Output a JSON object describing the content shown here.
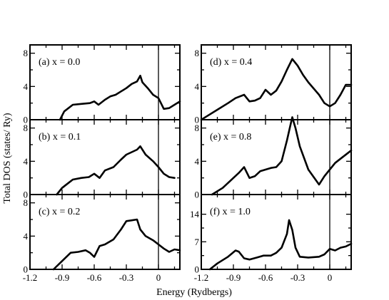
{
  "chart_data": {
    "type": "line",
    "xlabel": "Energy (Rydbergs)",
    "ylabel": "Total DOS (states/ Ry)",
    "xlim": [
      -1.2,
      0.2
    ],
    "x_ticks": [
      -1.2,
      -0.9,
      -0.6,
      -0.3,
      0
    ],
    "x_tick_labels": [
      "-1.2",
      "-0.9",
      "-0.6",
      "-0.3",
      "0"
    ],
    "fermi_level": 0,
    "panels": [
      {
        "label": "(a)  x = 0.0",
        "ylim": [
          0,
          9
        ],
        "y_ticks": [
          0,
          4,
          8
        ],
        "y_tick_labels": [
          "0",
          "4",
          "8"
        ],
        "x": [
          -0.92,
          -0.88,
          -0.8,
          -0.72,
          -0.64,
          -0.6,
          -0.56,
          -0.5,
          -0.45,
          -0.4,
          -0.35,
          -0.3,
          -0.25,
          -0.2,
          -0.17,
          -0.15,
          -0.1,
          -0.05,
          0,
          0.05,
          0.1,
          0.15,
          0.2
        ],
        "y": [
          0,
          1.0,
          1.8,
          1.9,
          2.0,
          2.2,
          1.8,
          2.4,
          2.8,
          3.0,
          3.4,
          3.8,
          4.3,
          4.6,
          5.3,
          4.5,
          3.8,
          3.0,
          2.6,
          1.3,
          1.4,
          1.8,
          2.2
        ]
      },
      {
        "label": "(b)  x = 0.1",
        "ylim": [
          0,
          9
        ],
        "y_ticks": [
          0,
          4,
          8
        ],
        "y_tick_labels": [
          "0",
          "4",
          "8"
        ],
        "x": [
          -0.95,
          -0.9,
          -0.85,
          -0.8,
          -0.72,
          -0.65,
          -0.6,
          -0.55,
          -0.5,
          -0.42,
          -0.35,
          -0.3,
          -0.25,
          -0.2,
          -0.17,
          -0.12,
          -0.05,
          0,
          0.05,
          0.1,
          0.15
        ],
        "y": [
          0,
          0.8,
          1.3,
          1.8,
          2.0,
          2.1,
          2.5,
          2.0,
          2.9,
          3.3,
          4.2,
          4.8,
          5.1,
          5.4,
          5.8,
          4.8,
          4.0,
          3.3,
          2.5,
          2.1,
          2.0
        ]
      },
      {
        "label": "(c)  x = 0.2",
        "ylim": [
          0,
          9
        ],
        "y_ticks": [
          0,
          4,
          8
        ],
        "y_tick_labels": [
          "0",
          "4",
          "8"
        ],
        "x": [
          -0.98,
          -0.9,
          -0.82,
          -0.75,
          -0.68,
          -0.64,
          -0.6,
          -0.55,
          -0.5,
          -0.42,
          -0.35,
          -0.3,
          -0.25,
          -0.2,
          -0.17,
          -0.12,
          -0.05,
          0,
          0.05,
          0.1,
          0.15,
          0.2
        ],
        "y": [
          0,
          1.0,
          2.0,
          2.1,
          2.3,
          2.0,
          1.5,
          2.8,
          3.0,
          3.6,
          4.8,
          5.8,
          5.9,
          6.0,
          4.8,
          4.0,
          3.5,
          3.0,
          2.5,
          2.1,
          2.4,
          2.3
        ]
      },
      {
        "label": "(d)  x = 0.4",
        "ylim": [
          0,
          9
        ],
        "y_ticks": [
          0,
          4,
          8
        ],
        "y_tick_labels": [
          "0",
          "4",
          "8"
        ],
        "x": [
          -1.2,
          -1.15,
          -1.05,
          -0.95,
          -0.88,
          -0.8,
          -0.75,
          -0.7,
          -0.65,
          -0.6,
          -0.55,
          -0.5,
          -0.45,
          -0.4,
          -0.35,
          -0.3,
          -0.25,
          -0.2,
          -0.1,
          -0.05,
          0,
          0.05,
          0.1,
          0.15,
          0.2
        ],
        "y": [
          0,
          0.4,
          1.2,
          2.0,
          2.6,
          3.0,
          2.2,
          2.3,
          2.6,
          3.6,
          3.0,
          3.5,
          4.6,
          6.0,
          7.3,
          6.5,
          5.4,
          4.5,
          3.0,
          2.0,
          1.6,
          2.0,
          3.0,
          4.2,
          4.2
        ]
      },
      {
        "label": "(e)  x = 0.8",
        "ylim": [
          0,
          9
        ],
        "y_ticks": [
          0,
          4,
          8
        ],
        "y_tick_labels": [
          "0",
          "4",
          "8"
        ],
        "x": [
          -1.1,
          -1.0,
          -0.9,
          -0.85,
          -0.8,
          -0.75,
          -0.7,
          -0.65,
          -0.6,
          -0.55,
          -0.5,
          -0.45,
          -0.4,
          -0.37,
          -0.35,
          -0.32,
          -0.28,
          -0.2,
          -0.1,
          -0.05,
          0,
          0.05,
          0.1,
          0.2
        ],
        "y": [
          0,
          0.8,
          2.0,
          2.6,
          3.3,
          2.0,
          2.2,
          2.8,
          3.0,
          3.2,
          3.3,
          4.0,
          6.5,
          8.2,
          9.3,
          8.0,
          5.8,
          3.0,
          1.2,
          2.2,
          3.0,
          3.8,
          4.3,
          5.3
        ]
      },
      {
        "label": "(f)  x = 1.0",
        "ylim": [
          0,
          19
        ],
        "y_ticks": [
          0,
          7,
          14
        ],
        "y_tick_labels": [
          "0",
          "7",
          "14"
        ],
        "x": [
          -1.12,
          -1.05,
          -0.95,
          -0.88,
          -0.85,
          -0.8,
          -0.75,
          -0.68,
          -0.62,
          -0.55,
          -0.5,
          -0.45,
          -0.4,
          -0.38,
          -0.35,
          -0.32,
          -0.28,
          -0.2,
          -0.1,
          -0.05,
          0,
          0.05,
          0.1,
          0.15,
          0.2
        ],
        "y": [
          0,
          1.5,
          3.2,
          4.8,
          4.5,
          2.8,
          2.5,
          3.0,
          3.5,
          3.5,
          4.2,
          5.5,
          9.0,
          12.5,
          10.0,
          5.5,
          3.2,
          3.0,
          3.2,
          3.8,
          5.2,
          4.8,
          5.5,
          5.8,
          6.5
        ]
      }
    ]
  }
}
